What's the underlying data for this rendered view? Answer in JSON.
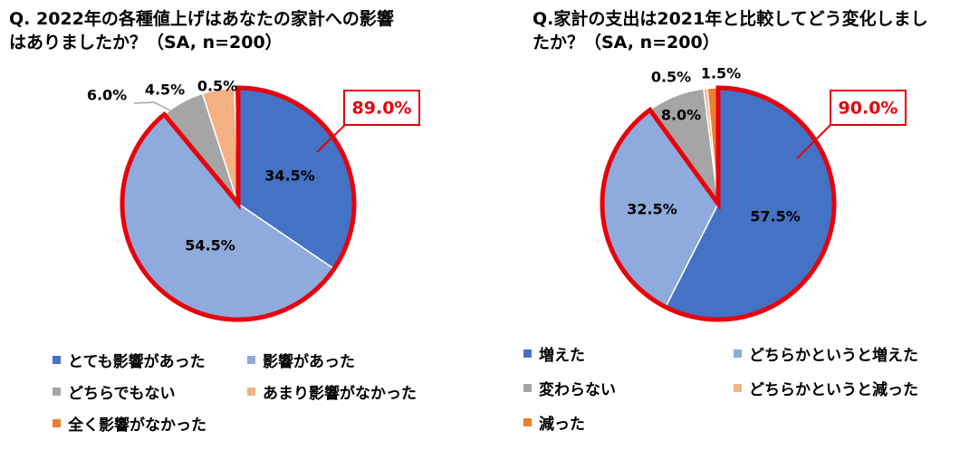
{
  "chart_data": [
    {
      "type": "pie",
      "title_line1": "Q. 2022年の各種値上げはあなたの家計への影響",
      "title_line2": "はありましたか？（SA, n=200）",
      "slices": [
        {
          "label": "とても影響があった",
          "value": 34.5,
          "value_label": "34.5%",
          "color": "#4472C4"
        },
        {
          "label": "影響があった",
          "value": 54.5,
          "value_label": "54.5%",
          "color": "#8FAADC"
        },
        {
          "label": "どちらでもない",
          "value": 6.0,
          "value_label": "6.0%",
          "color": "#A5A5A5"
        },
        {
          "label": "あまり影響がなかった",
          "value": 4.5,
          "value_label": "4.5%",
          "color": "#F4B183"
        },
        {
          "label": "全く影響がなかった",
          "value": 0.5,
          "value_label": "0.5%",
          "color": "#ED7D31"
        }
      ],
      "highlight": {
        "label": "89.0%",
        "color": "#E8000B"
      }
    },
    {
      "type": "pie",
      "title_line1": "Q.家計の支出は2021年と比較してどう変化しまし",
      "title_line2": "たか？（SA, n=200）",
      "slices": [
        {
          "label": "増えた",
          "value": 57.5,
          "value_label": "57.5%",
          "color": "#4472C4"
        },
        {
          "label": "どちらかというと増えた",
          "value": 32.5,
          "value_label": "32.5%",
          "color": "#8FAADC"
        },
        {
          "label": "変わらない",
          "value": 8.0,
          "value_label": "8.0%",
          "color": "#A5A5A5"
        },
        {
          "label": "どちらかというと減った",
          "value": 0.5,
          "value_label": "0.5%",
          "color": "#F4B183"
        },
        {
          "label": "減った",
          "value": 1.5,
          "value_label": "1.5%",
          "color": "#ED7D31"
        }
      ],
      "highlight": {
        "label": "90.0%",
        "color": "#E8000B"
      }
    }
  ]
}
